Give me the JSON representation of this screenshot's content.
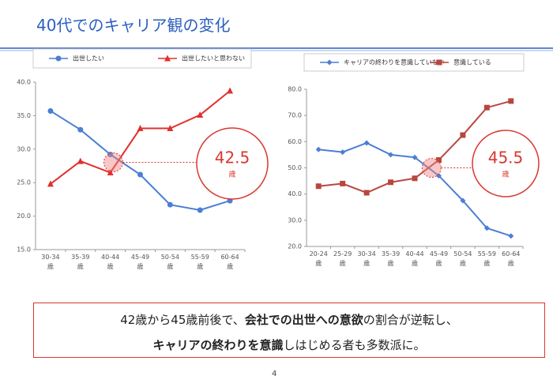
{
  "title": "40代でのキャリア観の変化",
  "summary": [
    [
      {
        "text": "42歳から45歳前後で、",
        "bold": false
      },
      {
        "text": "会社での出世への意欲",
        "bold": true
      },
      {
        "text": "の割合が逆転し、",
        "bold": false
      }
    ],
    [
      {
        "text": "キャリアの終わりを意識",
        "bold": true
      },
      {
        "text": "しはじめる者も多数派に。",
        "bold": false
      }
    ]
  ],
  "page_number": "4",
  "chart_data": [
    {
      "type": "line",
      "categories": [
        "30-34\n歳",
        "35-39\n歳",
        "40-44\n歳",
        "45-49\n歳",
        "50-54\n歳",
        "55-59\n歳",
        "60-64\n歳"
      ],
      "series": [
        {
          "name": "出世したい",
          "color": "#4a7fd4",
          "marker": "circle",
          "values": [
            35.7,
            32.9,
            29.2,
            26.2,
            21.7,
            20.9,
            22.3
          ]
        },
        {
          "name": "出世したいと思わない",
          "color": "#e0312f",
          "marker": "triangle",
          "values": [
            24.8,
            28.2,
            26.5,
            33.1,
            33.1,
            35.1,
            38.7
          ]
        }
      ],
      "ylim": [
        15,
        40
      ],
      "yticks": [
        {
          "value": 15,
          "label": "15.0"
        },
        {
          "value": 20,
          "label": "20.0"
        },
        {
          "value": 25,
          "label": "25.0"
        },
        {
          "value": 30,
          "label": "30.0"
        },
        {
          "value": 35,
          "label": "35.0"
        },
        {
          "value": 40,
          "label": "40.0"
        }
      ],
      "crossing": 42.5,
      "crossing_unit": "歳"
    },
    {
      "type": "line",
      "categories": [
        "20-24\n歳",
        "25-29\n歳",
        "30-34\n歳",
        "35-39\n歳",
        "40-44\n歳",
        "45-49\n歳",
        "50-54\n歳",
        "55-59\n歳",
        "60-64\n歳"
      ],
      "series": [
        {
          "name": "キャリアの終わりを意識していない",
          "color": "#4a7fd4",
          "marker": "diamond",
          "values": [
            57,
            56,
            59.5,
            55,
            54,
            47,
            37.5,
            27,
            24
          ]
        },
        {
          "name": "意識している",
          "color": "#b8463f",
          "marker": "square",
          "values": [
            43,
            44,
            40.5,
            44.5,
            46,
            53,
            62.5,
            73,
            75.5
          ]
        }
      ],
      "ylim": [
        20,
        80
      ],
      "yticks": [
        {
          "value": 20,
          "label": "20.0"
        },
        {
          "value": 30,
          "label": "30.0"
        },
        {
          "value": 40,
          "label": "40.0"
        },
        {
          "value": 50,
          "label": "50.0"
        },
        {
          "value": 60,
          "label": "60.0"
        },
        {
          "value": 70,
          "label": "70.0"
        },
        {
          "value": 80,
          "label": "80.0"
        }
      ],
      "crossing": 45.5,
      "crossing_unit": "歳"
    }
  ]
}
